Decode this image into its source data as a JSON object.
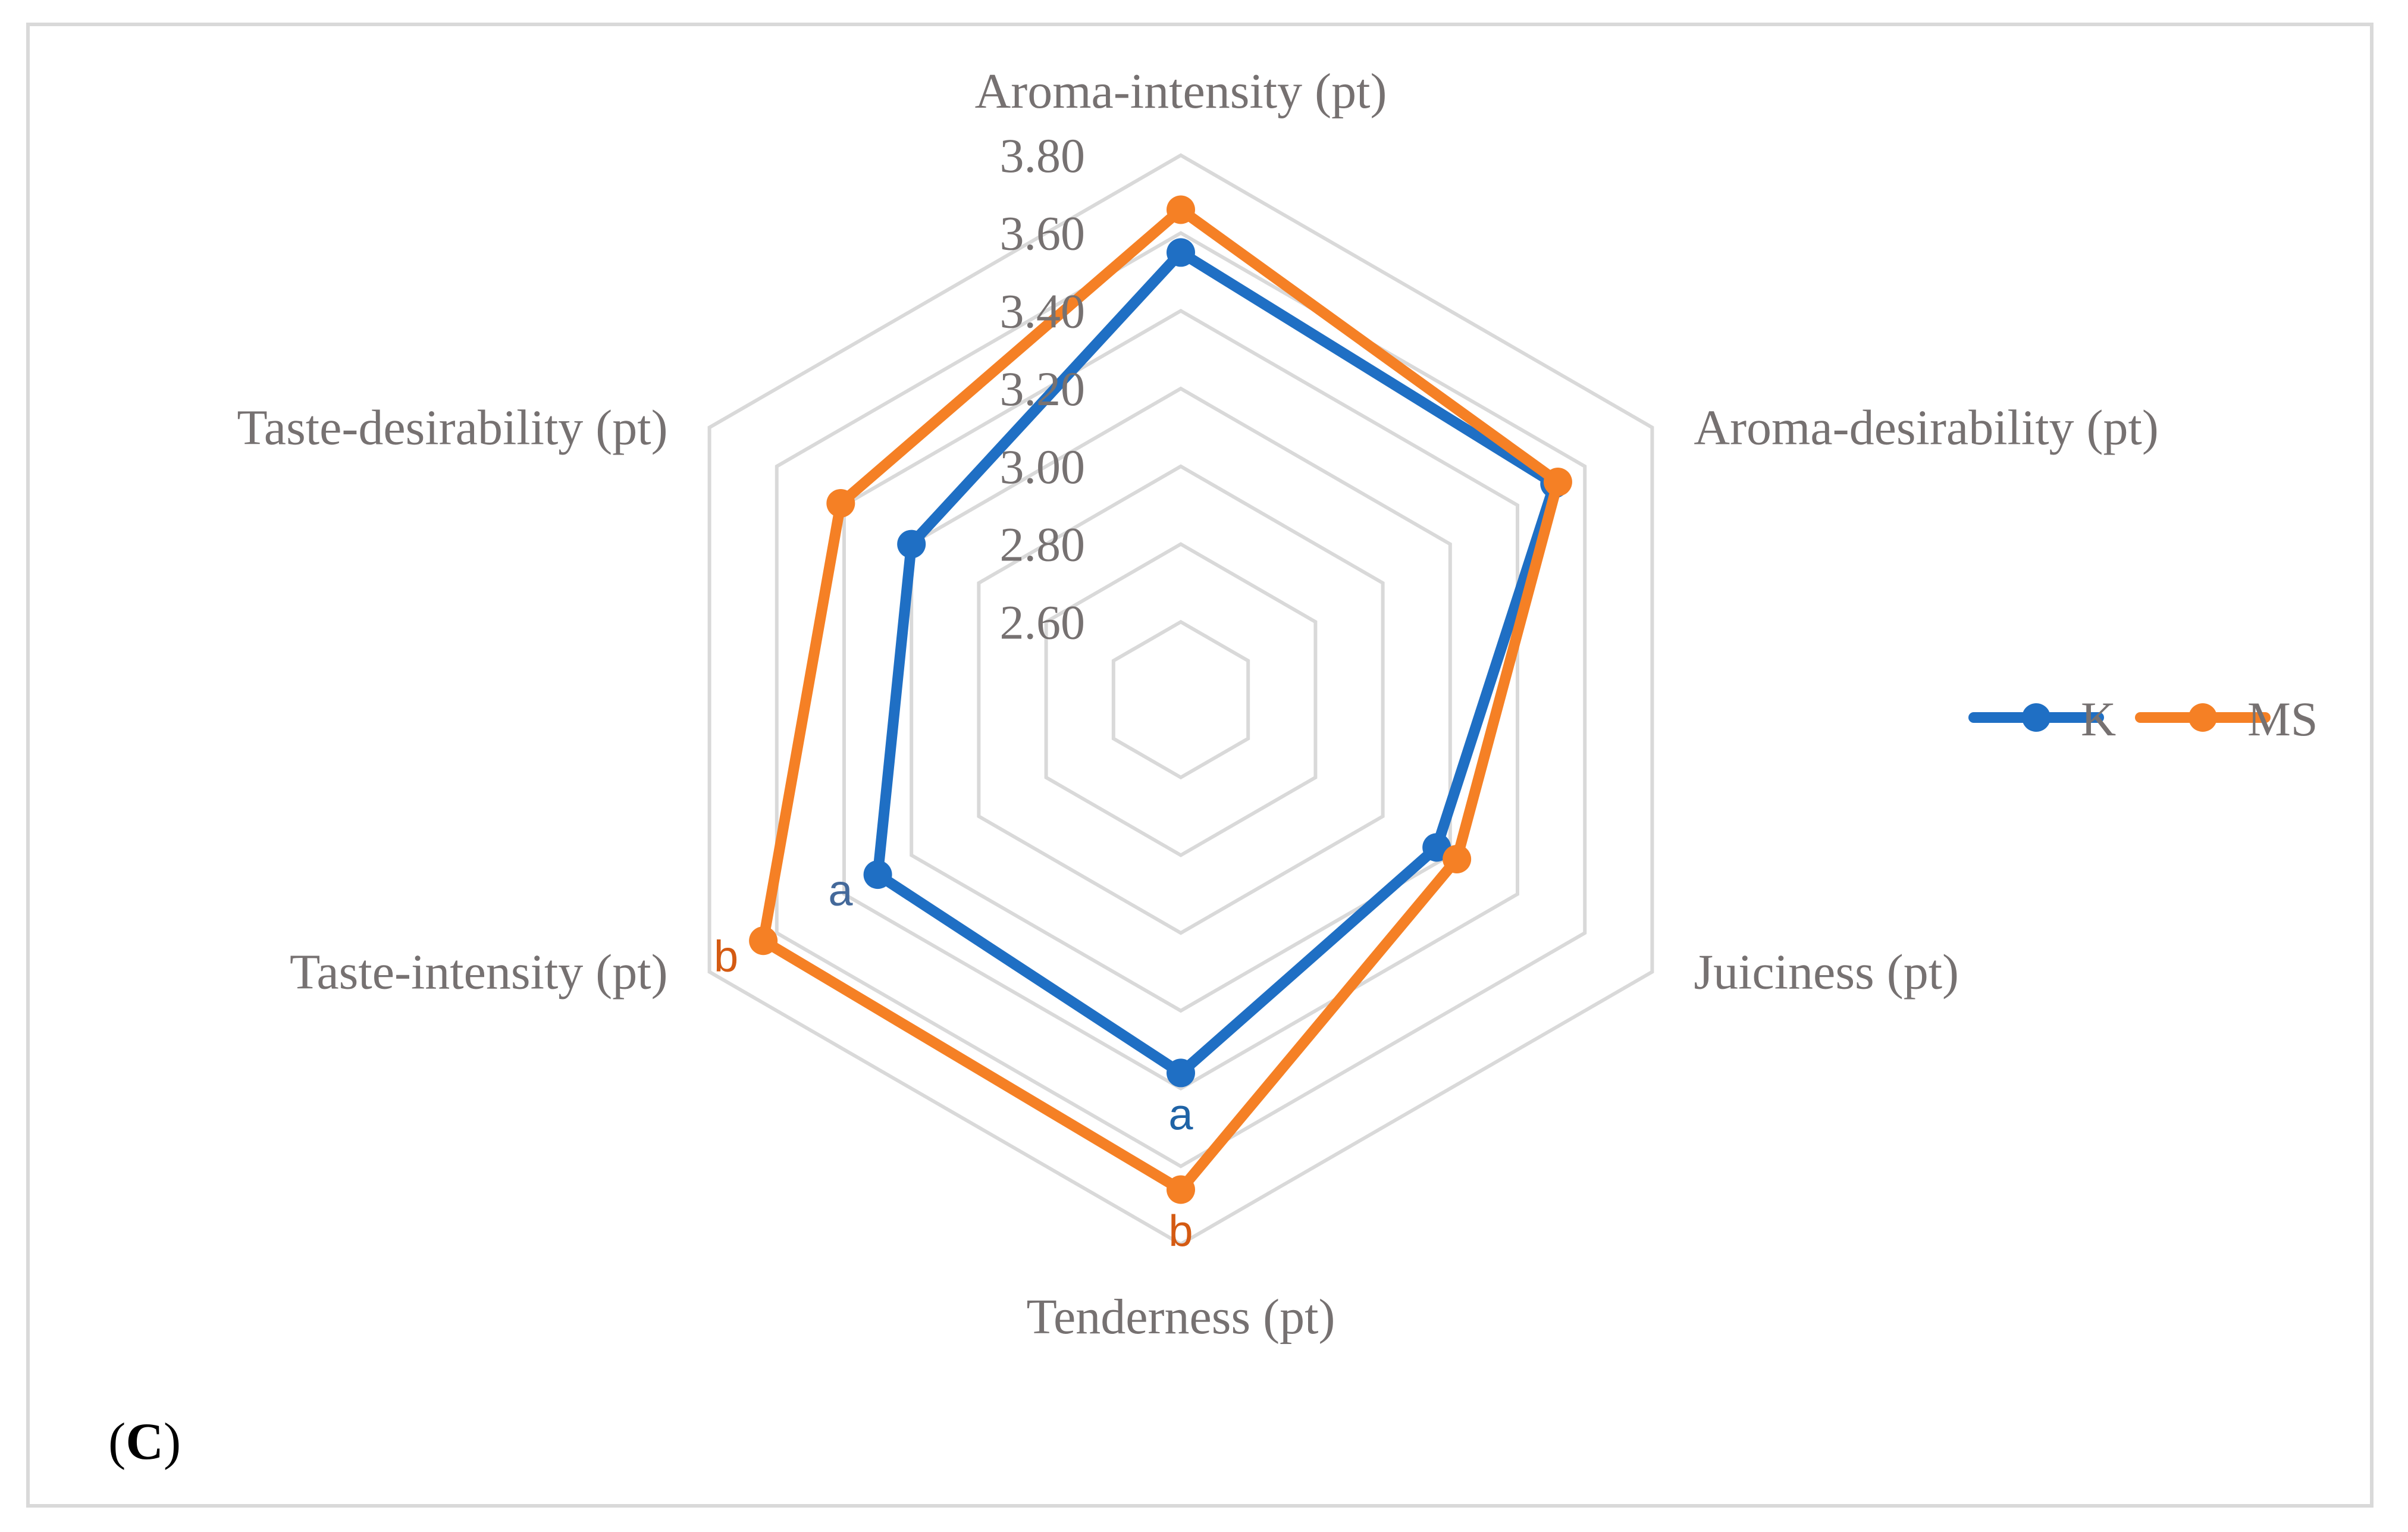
{
  "chart_data": {
    "type": "radar",
    "axes": [
      "Aroma-intensity (pt)",
      "Aroma-desirability (pt)",
      "Juiciness (pt)",
      "Tenderness (pt)",
      "Taste-intensity (pt)",
      "Taste-desirability (pt)"
    ],
    "ticks": [
      "2.60",
      "2.80",
      "3.00",
      "3.20",
      "3.40",
      "3.60",
      "3.80"
    ],
    "range": [
      2.4,
      3.8
    ],
    "series": [
      {
        "name": "K",
        "color": "#1f6fc4",
        "values": [
          3.55,
          3.51,
          3.16,
          3.36,
          3.3,
          3.2
        ]
      },
      {
        "name": "MS",
        "color": "#f58025",
        "values": [
          3.66,
          3.52,
          3.22,
          3.66,
          3.64,
          3.41
        ]
      }
    ],
    "annotations": [
      {
        "text": "a",
        "series": "K",
        "axis": "Taste-intensity (pt)",
        "color": "#44699a"
      },
      {
        "text": "b",
        "series": "MS",
        "axis": "Taste-intensity (pt)",
        "color": "#d45a12"
      },
      {
        "text": "a",
        "series": "K",
        "axis": "Tenderness (pt)",
        "color": "#1f63a6"
      },
      {
        "text": "b",
        "series": "MS",
        "axis": "Tenderness (pt)",
        "color": "#d45a12"
      }
    ],
    "legend_position": "right",
    "grid_color": "#d9d9d9"
  },
  "panel_label": {
    "open": "(",
    "letter": "C",
    "close": ")"
  }
}
